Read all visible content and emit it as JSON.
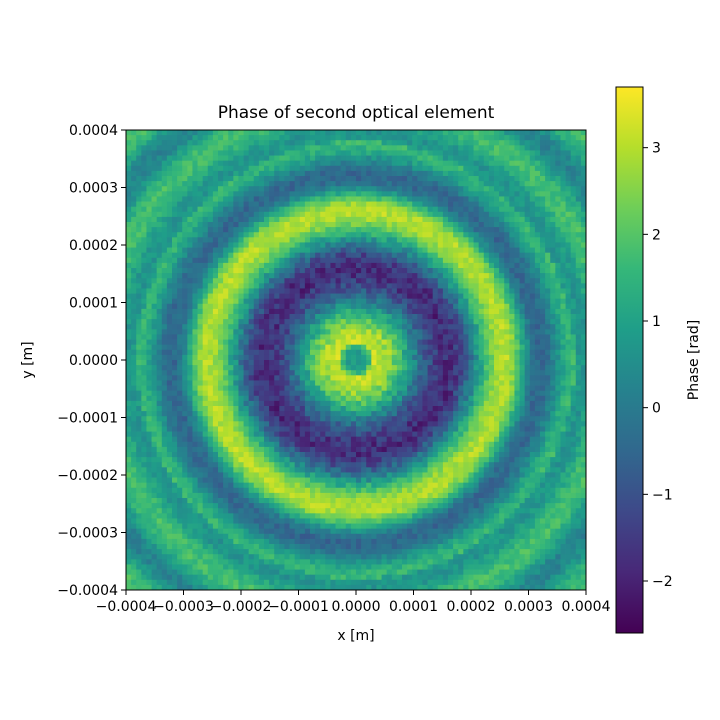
{
  "chart_data": {
    "type": "heatmap",
    "title": "Phase of second optical element",
    "xlabel": "x [m]",
    "ylabel": "y [m]",
    "colorbar_label": "Phase [rad]",
    "colormap": "viridis",
    "grid": false,
    "xlim": [
      -0.0004,
      0.0004
    ],
    "ylim": [
      -0.0004,
      0.0004
    ],
    "x_ticks": [
      -0.0004,
      -0.0003,
      -0.0002,
      -0.0001,
      0.0,
      0.0001,
      0.0002,
      0.0003,
      0.0004
    ],
    "x_tick_labels": [
      "−0.0004",
      "−0.0003",
      "−0.0002",
      "−0.0001",
      "0.0000",
      "0.0001",
      "0.0002",
      "0.0003",
      "0.0004"
    ],
    "y_ticks": [
      0.0004,
      0.0003,
      0.0002,
      0.0001,
      0.0,
      -0.0001,
      -0.0002,
      -0.0003,
      -0.0004
    ],
    "y_tick_labels": [
      "0.0004",
      "0.0003",
      "0.0002",
      "0.0001",
      "0.0000",
      "−0.0001",
      "−0.0002",
      "−0.0003",
      "−0.0004"
    ],
    "colorbar_range": [
      -2.6,
      3.7
    ],
    "colorbar_ticks": [
      3,
      2,
      1,
      0,
      -1,
      -2
    ],
    "colorbar_tick_labels": [
      "3",
      "2",
      "1",
      "0",
      "−1",
      "−2"
    ],
    "colors": [
      "#440154",
      "#482878",
      "#3e4989",
      "#31688e",
      "#26828e",
      "#1f9e89",
      "#35b779",
      "#6ece58",
      "#b5de2b",
      "#fde725"
    ],
    "pattern": {
      "description_of_field": "radially symmetric ring pattern",
      "rings": [
        {
          "radius": 3e-05,
          "phase": 3.2
        },
        {
          "radius": 0.00016,
          "phase": -1.8
        },
        {
          "radius": 0.00026,
          "phase": 3.0
        },
        {
          "radius": 0.00032,
          "phase": -0.5
        },
        {
          "radius": 0.00038,
          "phase": 1.6
        }
      ],
      "center_phase": 0.8,
      "background_phase": 1.0,
      "grid_cells": 90
    }
  }
}
